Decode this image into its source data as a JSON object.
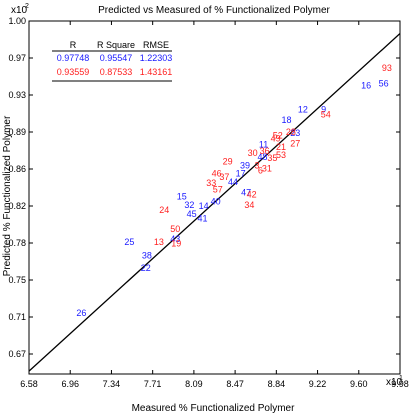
{
  "chart_data": {
    "type": "scatter",
    "title": "Predicted vs Measured of % Functionalized Polymer",
    "xlabel": "Measured % Functionalized Polymer",
    "ylabel": "Predicted % Functionalized Polymer",
    "x_multiplier": "x10",
    "x_multiplier_exp": "1",
    "y_multiplier": "x10",
    "y_multiplier_exp": "2",
    "xlim": [
      6.58,
      9.98
    ],
    "ylim": [
      0.634,
      1.0
    ],
    "xticks": [
      "6.58",
      "6.96",
      "7.34",
      "7.71",
      "8.09",
      "8.47",
      "8.84",
      "9.22",
      "9.60",
      "9.98"
    ],
    "yticks": [
      "0.67",
      "0.71",
      "0.75",
      "0.78",
      "0.82",
      "0.86",
      "0.89",
      "0.93",
      "0.97",
      "1.00"
    ],
    "grid": false,
    "fit_line": {
      "x": [
        6.58,
        9.98
      ],
      "y": [
        0.637,
        0.987
      ]
    },
    "stats_table": {
      "headers": [
        "R",
        "R Square",
        "RMSE"
      ],
      "rows": [
        {
          "values": [
            "0.97748",
            "0.95547",
            "1.22303"
          ],
          "color": "#1a1aff"
        },
        {
          "values": [
            "0.93559",
            "0.87533",
            "1.43161"
          ],
          "color": "#ff2020"
        }
      ]
    },
    "series": [
      {
        "color": "#1a1aff",
        "points": [
          {
            "label": "26",
            "x": 7.06,
            "y": 0.694
          },
          {
            "label": "22",
            "x": 7.65,
            "y": 0.741
          },
          {
            "label": "38",
            "x": 7.66,
            "y": 0.754
          },
          {
            "label": "25",
            "x": 7.5,
            "y": 0.768
          },
          {
            "label": "43",
            "x": 7.92,
            "y": 0.771
          },
          {
            "label": "45",
            "x": 8.07,
            "y": 0.797
          },
          {
            "label": "41",
            "x": 8.17,
            "y": 0.792
          },
          {
            "label": "32",
            "x": 8.05,
            "y": 0.806
          },
          {
            "label": "14",
            "x": 8.18,
            "y": 0.805
          },
          {
            "label": "15",
            "x": 7.98,
            "y": 0.815
          },
          {
            "label": "40",
            "x": 8.29,
            "y": 0.81
          },
          {
            "label": "47",
            "x": 8.57,
            "y": 0.819
          },
          {
            "label": "44",
            "x": 8.45,
            "y": 0.83
          },
          {
            "label": "17",
            "x": 8.52,
            "y": 0.839
          },
          {
            "label": "39",
            "x": 8.56,
            "y": 0.847
          },
          {
            "label": "48",
            "x": 8.72,
            "y": 0.856
          },
          {
            "label": "11",
            "x": 8.73,
            "y": 0.869
          },
          {
            "label": "23",
            "x": 9.02,
            "y": 0.881
          },
          {
            "label": "18",
            "x": 8.94,
            "y": 0.894
          },
          {
            "label": "12",
            "x": 9.09,
            "y": 0.905
          },
          {
            "label": "9",
            "x": 9.28,
            "y": 0.905
          },
          {
            "label": "16",
            "x": 9.67,
            "y": 0.93
          },
          {
            "label": "56",
            "x": 9.83,
            "y": 0.932
          }
        ]
      },
      {
        "color": "#ff2020",
        "points": [
          {
            "label": "13",
            "x": 7.77,
            "y": 0.768
          },
          {
            "label": "19",
            "x": 7.93,
            "y": 0.766
          },
          {
            "label": "50",
            "x": 7.92,
            "y": 0.781
          },
          {
            "label": "24",
            "x": 7.82,
            "y": 0.801
          },
          {
            "label": "34",
            "x": 8.6,
            "y": 0.806
          },
          {
            "label": "42",
            "x": 8.62,
            "y": 0.817
          },
          {
            "label": "57",
            "x": 8.31,
            "y": 0.822
          },
          {
            "label": "37",
            "x": 8.37,
            "y": 0.835
          },
          {
            "label": "46",
            "x": 8.3,
            "y": 0.839
          },
          {
            "label": "31",
            "x": 8.76,
            "y": 0.844
          },
          {
            "label": "35",
            "x": 8.81,
            "y": 0.855
          },
          {
            "label": "53",
            "x": 8.89,
            "y": 0.858
          },
          {
            "label": "21",
            "x": 8.89,
            "y": 0.866
          },
          {
            "label": "27",
            "x": 9.02,
            "y": 0.87
          },
          {
            "label": "52",
            "x": 8.86,
            "y": 0.878
          },
          {
            "label": "28",
            "x": 8.98,
            "y": 0.882
          },
          {
            "label": "54",
            "x": 9.3,
            "y": 0.9
          },
          {
            "label": "29",
            "x": 8.4,
            "y": 0.851
          },
          {
            "label": "6",
            "x": 8.7,
            "y": 0.842
          },
          {
            "label": "3",
            "x": 8.67,
            "y": 0.847
          },
          {
            "label": "36",
            "x": 8.74,
            "y": 0.862
          },
          {
            "label": "49",
            "x": 8.84,
            "y": 0.875
          },
          {
            "label": "33",
            "x": 8.25,
            "y": 0.829
          },
          {
            "label": "30",
            "x": 8.63,
            "y": 0.86
          },
          {
            "label": "93",
            "x": 9.86,
            "y": 0.948
          }
        ]
      }
    ]
  }
}
